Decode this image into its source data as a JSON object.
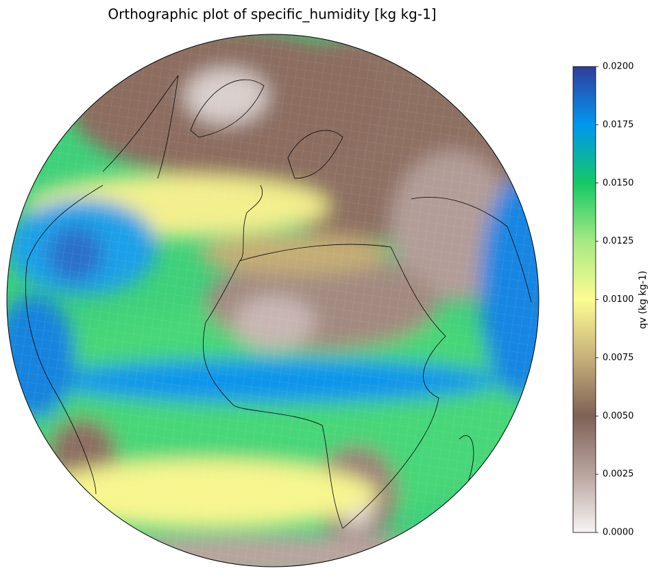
{
  "title": "Orthographic plot of specific_humidity [kg kg-1]",
  "colorbar": {
    "label": "qv (kg kg-1)",
    "lim": [
      0,
      0.02
    ],
    "ticks": [
      {
        "value": 0,
        "label": "0.0000"
      },
      {
        "value": 0.0025,
        "label": "0.0025"
      },
      {
        "value": 0.005,
        "label": "0.0050"
      },
      {
        "value": 0.0075,
        "label": "0.0075"
      },
      {
        "value": 0.01,
        "label": "0.0100"
      },
      {
        "value": 0.0125,
        "label": "0.0125"
      },
      {
        "value": 0.015,
        "label": "0.0150"
      },
      {
        "value": 0.0175,
        "label": "0.0175"
      },
      {
        "value": 0.02,
        "label": "0.0200"
      }
    ],
    "colors": [
      "#f6f4f3",
      "#b9a49f",
      "#7f6155",
      "#c7b07a",
      "#fdfc92",
      "#a6e983",
      "#14c865",
      "#0097f0",
      "#323c9c"
    ]
  }
}
